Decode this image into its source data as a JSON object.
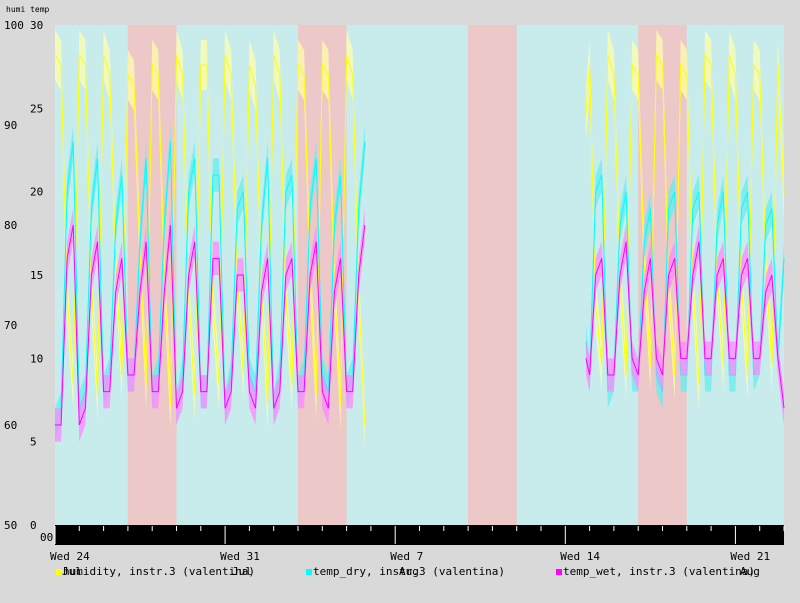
{
  "chart_data": {
    "type": "line",
    "axis_header": "humi temp",
    "y_left": {
      "label": "humi",
      "ylim": [
        50,
        100
      ],
      "ticks": [
        50,
        60,
        70,
        80,
        90,
        100
      ]
    },
    "y_right": {
      "label": "temp",
      "ylim": [
        0,
        30
      ],
      "ticks": [
        0,
        5,
        10,
        15,
        20,
        25,
        30
      ]
    },
    "x_tick_labels": [
      "Wed 24",
      "Wed 31",
      "Wed 7",
      "Wed 14",
      "Wed 21"
    ],
    "x_month_labels": [
      "Jul",
      "Aug",
      "Aug"
    ],
    "x_day_range": [
      0,
      30
    ],
    "time_zero_label": "00:",
    "bands": [
      {
        "start": 0.0,
        "end": 3.0,
        "color": "#c8ecec"
      },
      {
        "start": 3.0,
        "end": 5.0,
        "color": "#ecc8c8"
      },
      {
        "start": 5.0,
        "end": 10.0,
        "color": "#c8ecec"
      },
      {
        "start": 10.0,
        "end": 12.0,
        "color": "#ecc8c8"
      },
      {
        "start": 12.0,
        "end": 17.0,
        "color": "#c8ecec"
      },
      {
        "start": 17.0,
        "end": 19.0,
        "color": "#ecc8c8"
      },
      {
        "start": 19.0,
        "end": 24.0,
        "color": "#c8ecec"
      },
      {
        "start": 24.0,
        "end": 26.0,
        "color": "#ecc8c8"
      },
      {
        "start": 26.0,
        "end": 30.0,
        "color": "#c8ecec"
      }
    ],
    "data_gap_days": [
      12.8,
      21.8
    ],
    "series": [
      {
        "name": "humidity, instr.3 (valentina)",
        "axis": "left",
        "color": "#ffff00",
        "band_color": "#ffffaa",
        "x": [
          0.0,
          0.25,
          0.5,
          0.75,
          1.0,
          1.25,
          1.5,
          1.75,
          2.0,
          2.25,
          2.5,
          2.75,
          3.0,
          3.25,
          3.5,
          3.75,
          4.0,
          4.25,
          4.5,
          4.75,
          5.0,
          5.25,
          5.5,
          5.75,
          6.0,
          6.25,
          6.5,
          6.75,
          7.0,
          7.25,
          7.5,
          7.75,
          8.0,
          8.25,
          8.5,
          8.75,
          9.0,
          9.25,
          9.5,
          9.75,
          10.0,
          10.25,
          10.5,
          10.75,
          11.0,
          11.25,
          11.5,
          11.75,
          12.0,
          12.25,
          12.5,
          12.75,
          21.85,
          22.0,
          22.25,
          22.5,
          22.75,
          23.0,
          23.25,
          23.5,
          23.75,
          24.0,
          24.25,
          24.5,
          24.75,
          25.0,
          25.25,
          25.5,
          25.75,
          26.0,
          26.25,
          26.5,
          26.75,
          27.0,
          27.25,
          27.5,
          27.75,
          28.0,
          28.25,
          28.5,
          28.75,
          29.0,
          29.25,
          29.5,
          29.75,
          30.0
        ],
        "values": [
          97,
          96,
          73,
          64,
          97,
          96,
          74,
          63,
          97,
          95,
          76,
          65,
          95,
          94,
          77,
          64,
          96,
          95,
          75,
          62,
          97,
          95,
          73,
          63,
          96,
          96,
          72,
          64,
          97,
          95,
          75,
          65,
          96,
          94,
          74,
          62,
          97,
          95,
          73,
          64,
          96,
          95,
          75,
          63,
          96,
          95,
          74,
          62,
          97,
          95,
          73,
          60,
          91,
          96,
          72,
          66,
          97,
          95,
          75,
          65,
          96,
          95,
          76,
          66,
          97,
          96,
          74,
          65,
          96,
          95,
          74,
          64,
          97,
          96,
          75,
          66,
          97,
          95,
          74,
          65,
          96,
          95,
          76,
          66,
          96,
          83
        ]
      },
      {
        "name": "temp_dry, instr.3 (valentina)",
        "axis": "right",
        "color": "#00ffff",
        "band_color": "#66eeee",
        "x": [
          0.0,
          0.25,
          0.5,
          0.75,
          1.0,
          1.25,
          1.5,
          1.75,
          2.0,
          2.25,
          2.5,
          2.75,
          3.0,
          3.25,
          3.5,
          3.75,
          4.0,
          4.25,
          4.5,
          4.75,
          5.0,
          5.25,
          5.5,
          5.75,
          6.0,
          6.25,
          6.5,
          6.75,
          7.0,
          7.25,
          7.5,
          7.75,
          8.0,
          8.25,
          8.5,
          8.75,
          9.0,
          9.25,
          9.5,
          9.75,
          10.0,
          10.25,
          10.5,
          10.75,
          11.0,
          11.25,
          11.5,
          11.75,
          12.0,
          12.25,
          12.5,
          12.75,
          21.85,
          22.0,
          22.25,
          22.5,
          22.75,
          23.0,
          23.25,
          23.5,
          23.75,
          24.0,
          24.25,
          24.5,
          24.75,
          25.0,
          25.25,
          25.5,
          25.75,
          26.0,
          26.25,
          26.5,
          26.75,
          27.0,
          27.25,
          27.5,
          27.75,
          28.0,
          28.25,
          28.5,
          28.75,
          29.0,
          29.25,
          29.5,
          29.75,
          30.0
        ],
        "values": [
          6,
          7,
          20,
          23,
          7,
          8,
          19,
          22,
          8,
          9,
          18,
          21,
          9,
          9,
          17,
          22,
          8,
          9,
          18,
          23,
          7,
          9,
          20,
          22,
          8,
          8,
          21,
          21,
          7,
          9,
          19,
          20,
          9,
          8,
          18,
          22,
          7,
          9,
          20,
          21,
          8,
          9,
          19,
          22,
          9,
          8,
          18,
          21,
          8,
          9,
          19,
          23,
          11,
          9,
          20,
          21,
          8,
          9,
          18,
          20,
          9,
          9,
          17,
          19,
          9,
          8,
          19,
          20,
          9,
          9,
          19,
          20,
          9,
          9,
          18,
          20,
          9,
          9,
          19,
          20,
          9,
          10,
          18,
          19,
          10,
          16
        ]
      },
      {
        "name": "temp_wet, instr.3 (valentina)",
        "axis": "right",
        "color": "#ff00ff",
        "band_color": "#ff88ff",
        "x": [
          0.0,
          0.25,
          0.5,
          0.75,
          1.0,
          1.25,
          1.5,
          1.75,
          2.0,
          2.25,
          2.5,
          2.75,
          3.0,
          3.25,
          3.5,
          3.75,
          4.0,
          4.25,
          4.5,
          4.75,
          5.0,
          5.25,
          5.5,
          5.75,
          6.0,
          6.25,
          6.5,
          6.75,
          7.0,
          7.25,
          7.5,
          7.75,
          8.0,
          8.25,
          8.5,
          8.75,
          9.0,
          9.25,
          9.5,
          9.75,
          10.0,
          10.25,
          10.5,
          10.75,
          11.0,
          11.25,
          11.5,
          11.75,
          12.0,
          12.25,
          12.5,
          12.75,
          21.85,
          22.0,
          22.25,
          22.5,
          22.75,
          23.0,
          23.25,
          23.5,
          23.75,
          24.0,
          24.25,
          24.5,
          24.75,
          25.0,
          25.25,
          25.5,
          25.75,
          26.0,
          26.25,
          26.5,
          26.75,
          27.0,
          27.25,
          27.5,
          27.75,
          28.0,
          28.25,
          28.5,
          28.75,
          29.0,
          29.25,
          29.5,
          29.75,
          30.0
        ],
        "values": [
          6,
          6,
          16,
          18,
          6,
          7,
          15,
          17,
          8,
          8,
          14,
          16,
          9,
          9,
          14,
          17,
          8,
          8,
          14,
          18,
          7,
          8,
          15,
          17,
          8,
          8,
          16,
          16,
          7,
          8,
          15,
          15,
          8,
          7,
          14,
          16,
          7,
          8,
          15,
          16,
          8,
          8,
          15,
          17,
          8,
          7,
          14,
          16,
          8,
          8,
          15,
          18,
          10,
          9,
          15,
          16,
          9,
          9,
          15,
          17,
          10,
          9,
          14,
          16,
          10,
          9,
          15,
          16,
          10,
          10,
          15,
          17,
          10,
          10,
          15,
          16,
          10,
          10,
          15,
          16,
          10,
          10,
          14,
          15,
          10,
          7
        ]
      }
    ]
  }
}
